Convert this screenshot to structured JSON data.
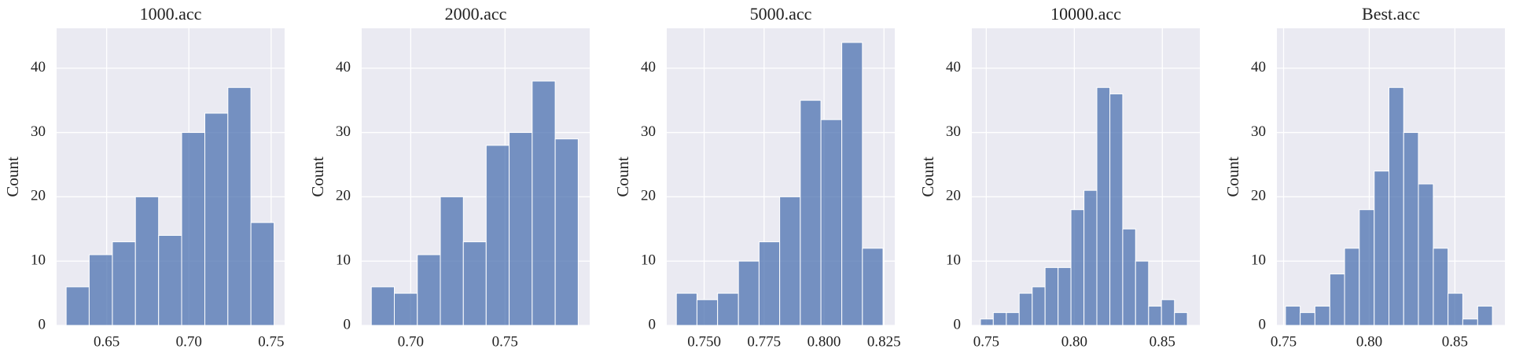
{
  "chart_data": [
    {
      "type": "histogram",
      "title": "1000.acc",
      "ylabel": "Count",
      "color": "#4c72b0",
      "grid": true,
      "bins": [
        0.6254,
        0.6394,
        0.6535,
        0.6675,
        0.6816,
        0.6956,
        0.7097,
        0.7237,
        0.7377,
        0.7518
      ],
      "values": [
        6,
        11,
        13,
        20,
        14,
        30,
        33,
        37,
        16
      ],
      "xlim": [
        0.6196,
        0.7582
      ],
      "xticks": [
        0.65,
        {
          "value": 0.7,
          "label": "0.70"
        },
        0.75
      ],
      "ylim": [
        0,
        46.2
      ],
      "yticks": [
        0,
        10,
        20,
        30,
        40
      ]
    },
    {
      "type": "histogram",
      "title": "2000.acc",
      "ylabel": "Count",
      "color": "#4c72b0",
      "grid": true,
      "bins": [
        0.6791,
        0.6913,
        0.7035,
        0.7157,
        0.7279,
        0.74,
        0.7522,
        0.7644,
        0.7766,
        0.7888
      ],
      "values": [
        6,
        5,
        11,
        20,
        13,
        28,
        30,
        38,
        29
      ],
      "xlim": [
        0.674,
        0.7949
      ],
      "xticks": [
        {
          "value": 0.7,
          "label": "0.70"
        },
        0.75
      ],
      "ylim": [
        0,
        46.2
      ],
      "yticks": [
        0,
        10,
        20,
        30,
        40
      ]
    },
    {
      "type": "histogram",
      "title": "5000.acc",
      "ylabel": "Count",
      "color": "#4c72b0",
      "grid": true,
      "bins": [
        0.7384,
        0.747,
        0.7556,
        0.7643,
        0.7729,
        0.7815,
        0.7901,
        0.7987,
        0.8074,
        0.816,
        0.8246
      ],
      "values": [
        5,
        4,
        5,
        10,
        13,
        20,
        35,
        32,
        44,
        12
      ],
      "xlim": [
        0.7344,
        0.8295
      ],
      "xticks": [
        {
          "value": 0.75,
          "label": "0.750"
        },
        0.775,
        {
          "value": 0.8,
          "label": "0.800"
        },
        0.825
      ],
      "ylim": [
        0,
        46.2
      ],
      "yticks": [
        0,
        10,
        20,
        30,
        40
      ]
    },
    {
      "type": "histogram",
      "title": "10000.acc",
      "ylabel": "Count",
      "color": "#4c72b0",
      "grid": true,
      "bins": [
        0.7467,
        0.754,
        0.7614,
        0.7687,
        0.7761,
        0.7834,
        0.7908,
        0.7981,
        0.8055,
        0.8128,
        0.8202,
        0.8275,
        0.8348,
        0.8422,
        0.8495,
        0.8569,
        0.8642
      ],
      "values": [
        1,
        2,
        2,
        5,
        6,
        9,
        9,
        18,
        21,
        37,
        36,
        15,
        10,
        3,
        4,
        2
      ],
      "xlim": [
        0.7418,
        0.8713
      ],
      "xticks": [
        0.75,
        {
          "value": 0.8,
          "label": "0.80"
        },
        0.85
      ],
      "ylim": [
        0,
        46.2
      ],
      "yticks": [
        0,
        10,
        20,
        30,
        40
      ]
    },
    {
      "type": "histogram",
      "title": "Best.acc",
      "ylabel": "Count",
      "color": "#4c72b0",
      "grid": true,
      "bins": [
        0.7511,
        0.7597,
        0.7683,
        0.777,
        0.7856,
        0.7942,
        0.8029,
        0.8115,
        0.8201,
        0.8287,
        0.8374,
        0.846,
        0.8546,
        0.8633,
        0.8719
      ],
      "values": [
        3,
        2,
        3,
        8,
        12,
        18,
        24,
        37,
        30,
        22,
        12,
        5,
        1,
        3
      ],
      "xlim": [
        0.7461,
        0.8792
      ],
      "xticks": [
        0.75,
        {
          "value": 0.8,
          "label": "0.80"
        },
        0.85
      ],
      "ylim": [
        0,
        46.2
      ],
      "yticks": [
        0,
        10,
        20,
        30,
        40
      ]
    }
  ]
}
